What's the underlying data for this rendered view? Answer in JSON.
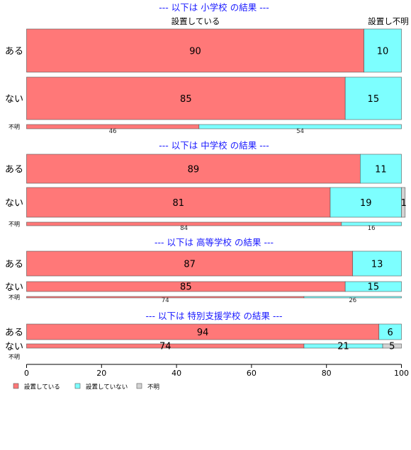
{
  "header_labels": {
    "left": "設置している",
    "right": "設置し不明"
  },
  "chart_data": {
    "type": "bar",
    "orientation": "horizontal",
    "stacked": true,
    "xlim": [
      0,
      100
    ],
    "x_ticks": [
      "0",
      "20",
      "40",
      "60",
      "80",
      "100"
    ],
    "colors": {
      "設置している": "#ff7878",
      "設置していない": "#7dffff",
      "不明": "#d3d3d3"
    },
    "legend": {
      "position": "bottom-left",
      "items": [
        "設置している",
        "設置していない",
        "不明"
      ]
    },
    "sections": [
      {
        "title": "--- 以下は 小学校 の結果 ---",
        "rows": [
          {
            "label": "ある",
            "values": [
              90,
              10,
              0
            ],
            "labels": [
              "90",
              "10",
              ""
            ]
          },
          {
            "label": "ない",
            "values": [
              85,
              15,
              0
            ],
            "labels": [
              "85",
              "15",
              ""
            ]
          },
          {
            "label": "不明",
            "values": [
              46,
              54,
              0
            ],
            "labels": [
              "46",
              "54",
              ""
            ]
          }
        ]
      },
      {
        "title": "--- 以下は 中学校 の結果 ---",
        "rows": [
          {
            "label": "ある",
            "values": [
              89,
              11,
              0
            ],
            "labels": [
              "89",
              "11",
              ""
            ]
          },
          {
            "label": "ない",
            "values": [
              81,
              19,
              1
            ],
            "labels": [
              "81",
              "19",
              "1"
            ]
          },
          {
            "label": "不明",
            "values": [
              84,
              16,
              0
            ],
            "labels": [
              "84",
              "16",
              ""
            ]
          }
        ]
      },
      {
        "title": "--- 以下は 高等学校 の結果 ---",
        "rows": [
          {
            "label": "ある",
            "values": [
              87,
              13,
              0
            ],
            "labels": [
              "87",
              "13",
              ""
            ]
          },
          {
            "label": "ない",
            "values": [
              85,
              15,
              0
            ],
            "labels": [
              "85",
              "15",
              ""
            ]
          },
          {
            "label": "不明",
            "values": [
              74,
              26,
              0
            ],
            "labels": [
              "74",
              "26",
              ""
            ]
          }
        ]
      },
      {
        "title": "--- 以下は 特別支援学校 の結果 ---",
        "rows": [
          {
            "label": "ある",
            "values": [
              94,
              6,
              0
            ],
            "labels": [
              "94",
              "6",
              ""
            ]
          },
          {
            "label": "ない",
            "values": [
              74,
              21,
              5
            ],
            "labels": [
              "74",
              "21",
              "5"
            ]
          },
          {
            "label": "不明",
            "values": [
              0,
              0,
              0
            ],
            "labels": [
              "",
              "",
              ""
            ]
          }
        ]
      }
    ]
  }
}
